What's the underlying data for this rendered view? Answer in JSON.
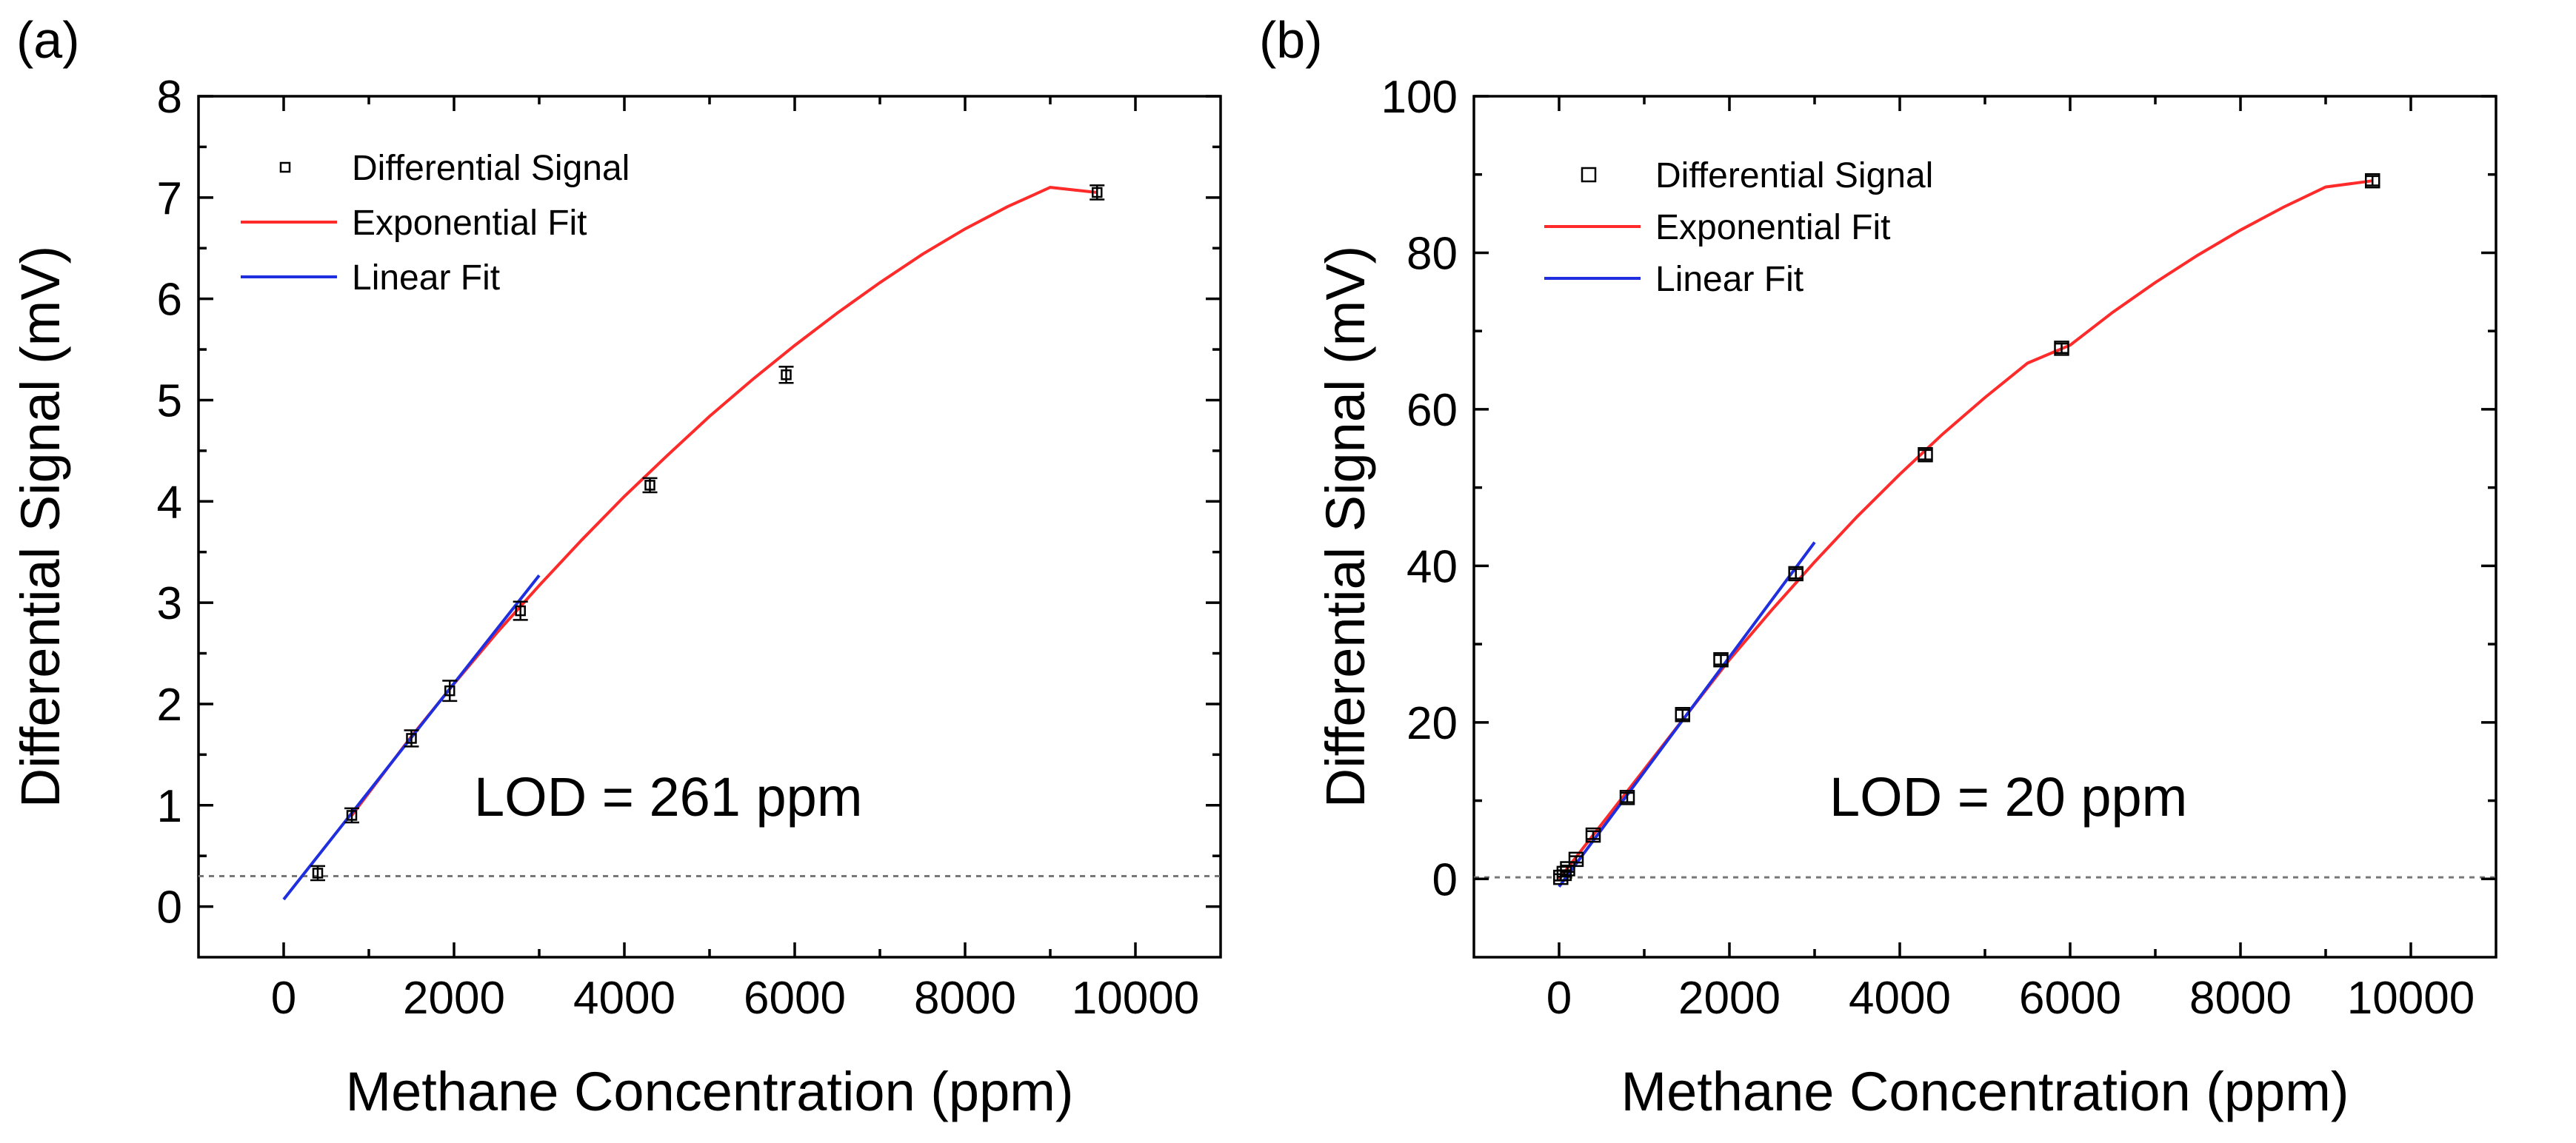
{
  "chart_data": [
    {
      "panel_label": "(a)",
      "type": "scatter",
      "xlabel": "Methane Concentration (ppm)",
      "ylabel": "Differential Signal (mV)",
      "xlim": [
        -1000,
        11000
      ],
      "ylim": [
        -0.5,
        8
      ],
      "xticks": [
        0,
        2000,
        4000,
        6000,
        8000,
        10000
      ],
      "yticks": [
        0,
        1,
        2,
        3,
        4,
        5,
        6,
        7,
        8
      ],
      "grid": false,
      "legend_position": "top-left",
      "legend": [
        "Differential Signal",
        "Exponential Fit",
        "Linear Fit"
      ],
      "annotation": "LOD = 261 ppm",
      "lod_level": 0.3,
      "series": [
        {
          "name": "Differential Signal",
          "kind": "points",
          "x": [
            400,
            800,
            1500,
            1950,
            2780,
            4300,
            5900,
            9550
          ],
          "y": [
            0.33,
            0.9,
            1.66,
            2.13,
            2.92,
            4.16,
            5.25,
            7.05
          ],
          "err": [
            0.07,
            0.07,
            0.08,
            0.1,
            0.09,
            0.07,
            0.08,
            0.07
          ]
        },
        {
          "name": "Exponential Fit",
          "kind": "line",
          "x": [
            800,
            1500,
            2000,
            2500,
            3000,
            3500,
            4000,
            4500,
            5000,
            5500,
            6000,
            6500,
            7000,
            7500,
            8000,
            8500,
            9000,
            9550
          ],
          "y": [
            0.9,
            1.68,
            2.2,
            2.7,
            3.17,
            3.62,
            4.05,
            4.45,
            4.84,
            5.2,
            5.54,
            5.86,
            6.16,
            6.44,
            6.69,
            6.91,
            7.1,
            7.05
          ]
        },
        {
          "name": "Linear Fit",
          "kind": "line",
          "x": [
            0,
            3000
          ],
          "y": [
            0.07,
            3.27
          ]
        }
      ]
    },
    {
      "panel_label": "(b)",
      "type": "scatter",
      "xlabel": "Methane Concentration (ppm)",
      "ylabel": "Differential Signal (mV)",
      "xlim": [
        -1000,
        11000
      ],
      "ylim": [
        -10,
        100
      ],
      "xticks": [
        0,
        2000,
        4000,
        6000,
        8000,
        10000
      ],
      "yticks": [
        0,
        20,
        40,
        60,
        80,
        100
      ],
      "grid": false,
      "legend_position": "top-left",
      "legend": [
        "Differential Signal",
        "Exponential Fit",
        "Linear Fit"
      ],
      "annotation": "LOD = 20 ppm",
      "lod_level": 0.2,
      "series": [
        {
          "name": "Differential Signal",
          "kind": "points",
          "x": [
            20,
            60,
            100,
            200,
            400,
            800,
            1450,
            1900,
            2780,
            4300,
            5900,
            9550
          ],
          "y": [
            0.2,
            0.7,
            1.3,
            2.5,
            5.6,
            10.4,
            21,
            28,
            39,
            54.2,
            67.8,
            89.2
          ],
          "err": [
            0.4,
            0.4,
            0.4,
            0.4,
            0.5,
            0.6,
            0.6,
            0.6,
            0.6,
            0.6,
            0.6,
            0.6
          ]
        },
        {
          "name": "Exponential Fit",
          "kind": "line",
          "x": [
            0,
            500,
            1000,
            1500,
            2000,
            2500,
            3000,
            3500,
            4000,
            4500,
            5000,
            5500,
            6000,
            6500,
            7000,
            7500,
            8000,
            8500,
            9000,
            9550
          ],
          "y": [
            0,
            7,
            14,
            21,
            28,
            34.4,
            40.5,
            46.3,
            51.7,
            56.8,
            61.5,
            65.9,
            68.2,
            72.4,
            76.2,
            79.7,
            82.9,
            85.8,
            88.4,
            89.2
          ]
        },
        {
          "name": "Linear Fit",
          "kind": "line",
          "x": [
            0,
            3000
          ],
          "y": [
            -1,
            43
          ]
        }
      ]
    }
  ]
}
